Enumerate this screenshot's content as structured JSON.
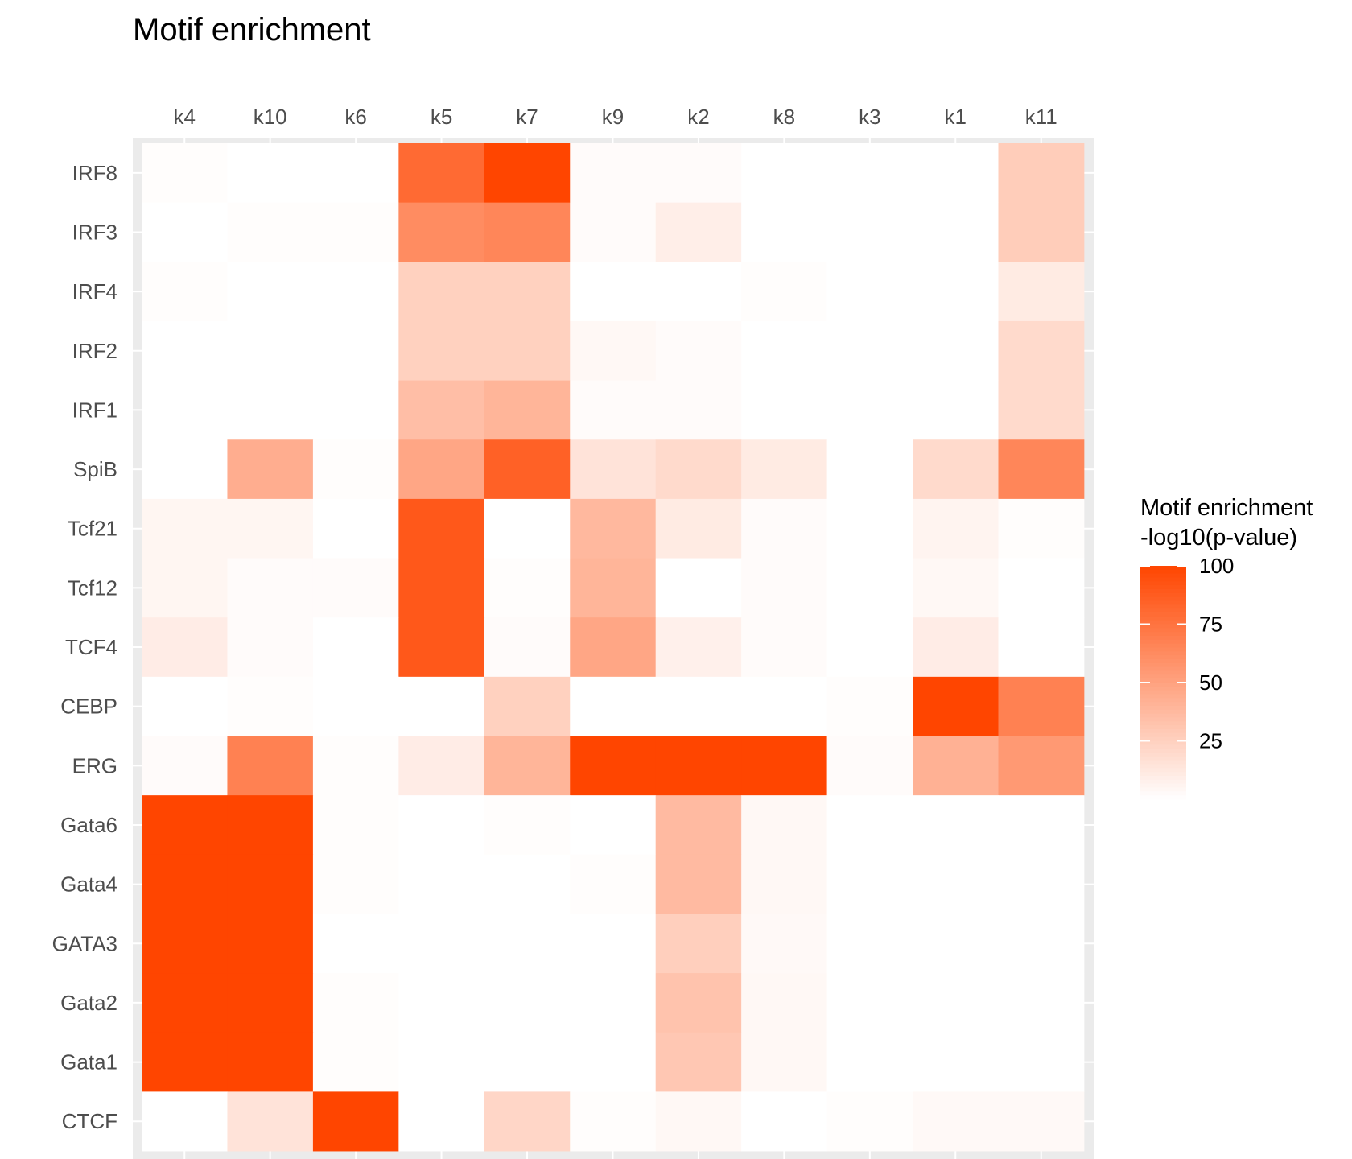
{
  "chart_data": {
    "type": "heatmap",
    "title": "Motif enrichment",
    "x_categories": [
      "k4",
      "k10",
      "k6",
      "k5",
      "k7",
      "k9",
      "k2",
      "k8",
      "k3",
      "k1",
      "k11"
    ],
    "y_categories": [
      "IRF8",
      "IRF3",
      "IRF4",
      "IRF2",
      "IRF1",
      "SpiB",
      "Tcf21",
      "Tcf12",
      "TCF4",
      "CEBP",
      "ERG",
      "Gata6",
      "Gata4",
      "GATA3",
      "Gata2",
      "Gata1",
      "CTCF"
    ],
    "values": [
      [
        1,
        0,
        0,
        80,
        100,
        2,
        2,
        0,
        0,
        0,
        27
      ],
      [
        0,
        1,
        1,
        62,
        65,
        2,
        9,
        0,
        0,
        0,
        27
      ],
      [
        1,
        0,
        0,
        25,
        25,
        0,
        0,
        1,
        0,
        0,
        11
      ],
      [
        0,
        0,
        0,
        25,
        25,
        4,
        2,
        0,
        0,
        0,
        20
      ],
      [
        0,
        0,
        0,
        35,
        40,
        2,
        2,
        0,
        0,
        0,
        20
      ],
      [
        0,
        44,
        1,
        48,
        85,
        15,
        20,
        11,
        0,
        20,
        65
      ],
      [
        5,
        5,
        0,
        90,
        0,
        38,
        11,
        2,
        0,
        6,
        1
      ],
      [
        5,
        2,
        2,
        90,
        1,
        40,
        0,
        2,
        0,
        4,
        0
      ],
      [
        10,
        2,
        0,
        90,
        2,
        48,
        8,
        2,
        0,
        10,
        0
      ],
      [
        0,
        1,
        0,
        0,
        25,
        0,
        0,
        0,
        1,
        100,
        68
      ],
      [
        2,
        68,
        1,
        10,
        40,
        100,
        100,
        100,
        2,
        42,
        55
      ],
      [
        100,
        100,
        1,
        0,
        1,
        0,
        37,
        4,
        0,
        0,
        0
      ],
      [
        100,
        100,
        1,
        0,
        0,
        1,
        37,
        4,
        0,
        0,
        0
      ],
      [
        100,
        100,
        0,
        0,
        0,
        0,
        26,
        3,
        0,
        0,
        0
      ],
      [
        100,
        100,
        1,
        0,
        0,
        0,
        32,
        4,
        0,
        0,
        0
      ],
      [
        100,
        100,
        1,
        0,
        0,
        0,
        30,
        4,
        0,
        0,
        0
      ],
      [
        0,
        15,
        100,
        0,
        22,
        1,
        4,
        0,
        1,
        3,
        3
      ]
    ],
    "value_range": [
      0,
      100
    ],
    "color_low": "#ffffff",
    "color_high": "#ff4500",
    "grid": true,
    "legend": {
      "title_line1": "Motif enrichment",
      "title_line2": "-log10(p-value)",
      "ticks": [
        25,
        50,
        75,
        100
      ],
      "placement": "right"
    },
    "x_axis_position": "top"
  },
  "colors": {
    "panel_background": "#ebebeb",
    "grid_line": "#ffffff",
    "tick_text": "#4d4d4d"
  }
}
